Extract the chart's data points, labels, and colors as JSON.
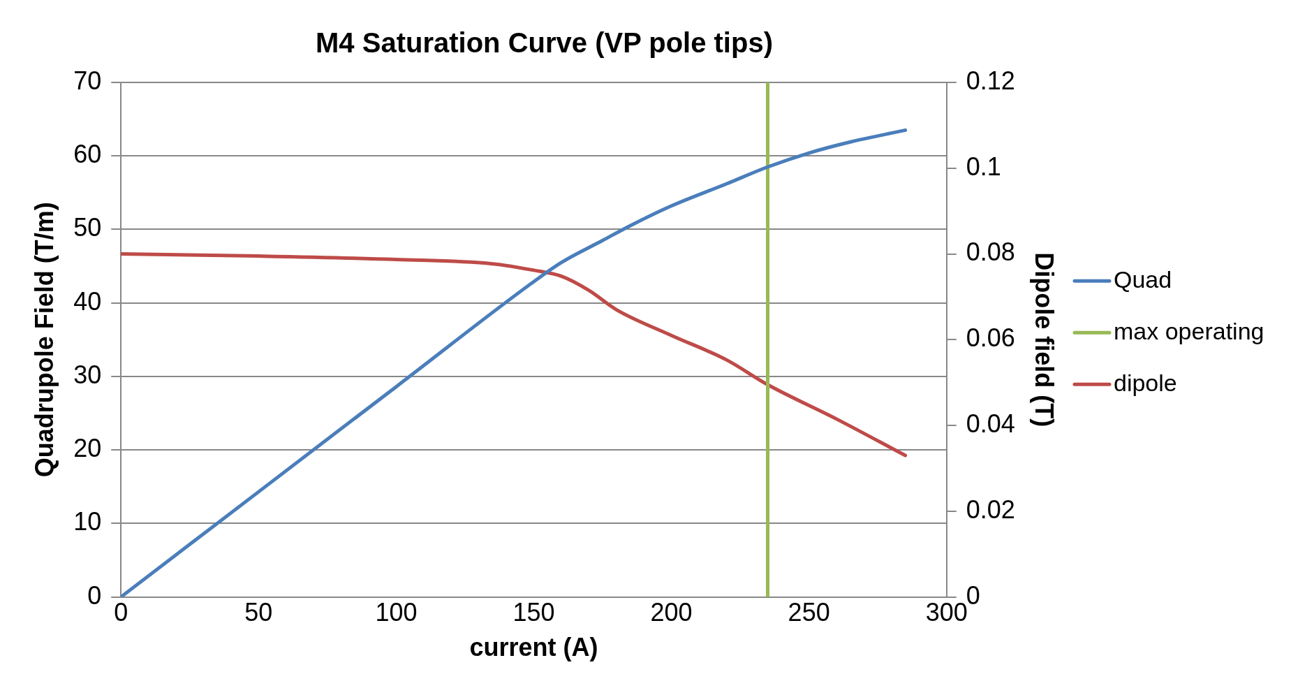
{
  "chart_data": {
    "type": "line",
    "title": "M4 Saturation Curve (VP pole tips)",
    "xlabel": "current (A)",
    "ylabel": "Quadrupole Field (T/m)",
    "y2label": "Dipole field (T)",
    "xlim": [
      0,
      300
    ],
    "xticks": [
      0,
      50,
      100,
      150,
      200,
      250,
      300
    ],
    "ylim": [
      0,
      70
    ],
    "yticks": [
      0,
      10,
      20,
      30,
      40,
      50,
      60,
      70
    ],
    "y2lim": [
      0,
      0.12
    ],
    "y2ticks": [
      0,
      0.02,
      0.04,
      0.06,
      0.08,
      0.1,
      0.12
    ],
    "grid": "y",
    "legend": "right",
    "marker": "none",
    "series": [
      {
        "name": "Quad",
        "color": "#4a7ebb",
        "x": [
          0,
          50,
          100,
          150,
          160,
          175,
          185,
          200,
          220,
          235,
          250,
          265,
          285
        ],
        "values": [
          0,
          14.3,
          28.6,
          42.9,
          45.5,
          48.5,
          50.5,
          53.2,
          56.2,
          58.5,
          60.4,
          61.9,
          63.5
        ]
      },
      {
        "name": "max operating",
        "color": "#98b954",
        "x": [
          235,
          235
        ],
        "values": [
          0,
          70
        ]
      },
      {
        "name": "dipole",
        "color": "#be4b48",
        "axis": "y2",
        "x": [
          0,
          50,
          100,
          135,
          150,
          160,
          170,
          180,
          200,
          220,
          235,
          260,
          285
        ],
        "values": [
          0.08,
          0.0795,
          0.0787,
          0.0777,
          0.0762,
          0.0748,
          0.0715,
          0.067,
          0.061,
          0.0553,
          0.0495,
          0.0415,
          0.033
        ]
      }
    ]
  }
}
